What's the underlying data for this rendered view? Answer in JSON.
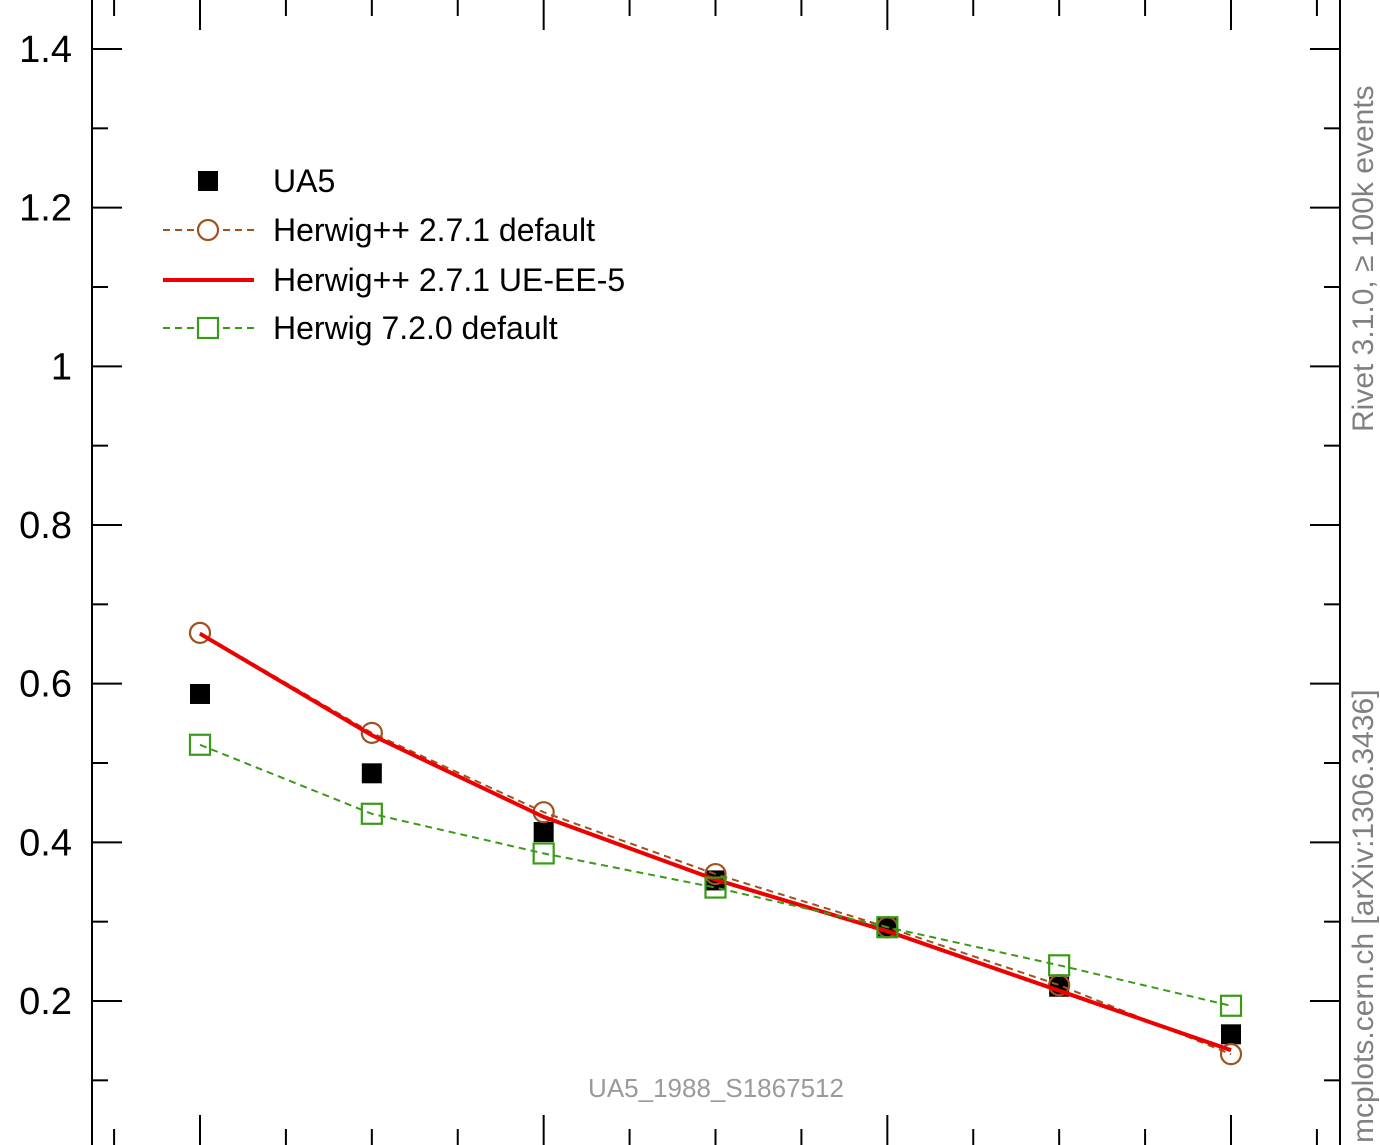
{
  "chart_data": {
    "type": "line",
    "title": "",
    "xlabel": "",
    "ylabel": "",
    "ylim": [
      0.0,
      1.45
    ],
    "y_ticks": [
      0.2,
      0.4,
      0.6,
      0.8,
      1.0,
      1.2,
      1.4
    ],
    "y_tick_labels": [
      "0.2",
      "0.4",
      "0.6",
      "0.8",
      "1",
      "1.2",
      "1.4"
    ],
    "x": [
      1,
      2,
      3,
      4,
      5,
      6,
      7
    ],
    "legend_position": "top-left",
    "series": [
      {
        "name": "UA5",
        "style": "markers",
        "marker": "filled-square",
        "color": "#000000",
        "values": [
          0.587,
          0.487,
          0.413,
          0.352,
          0.293,
          0.218,
          0.158
        ]
      },
      {
        "name": "Herwig++ 2.7.1 default",
        "style": "dashed",
        "marker": "open-circle",
        "color": "#a0521e",
        "values": [
          0.664,
          0.538,
          0.438,
          0.36,
          0.293,
          0.22,
          0.133
        ]
      },
      {
        "name": "Herwig++ 2.7.1 UE-EE-5",
        "style": "solid",
        "marker": "none",
        "color": "#ee0000",
        "values": [
          0.663,
          0.535,
          0.432,
          0.353,
          0.288,
          0.213,
          0.138
        ]
      },
      {
        "name": "Herwig 7.2.0 default",
        "style": "dashed",
        "marker": "open-square",
        "color": "#3a9a17",
        "values": [
          0.523,
          0.436,
          0.386,
          0.343,
          0.293,
          0.245,
          0.194
        ]
      }
    ]
  },
  "side_labels": {
    "rivet": "Rivet 3.1.0, ≥ 100k events",
    "mcplots": "mcplots.cern.ch [arXiv:1306.3436]"
  },
  "watermark": "UA5_1988_S1867512"
}
